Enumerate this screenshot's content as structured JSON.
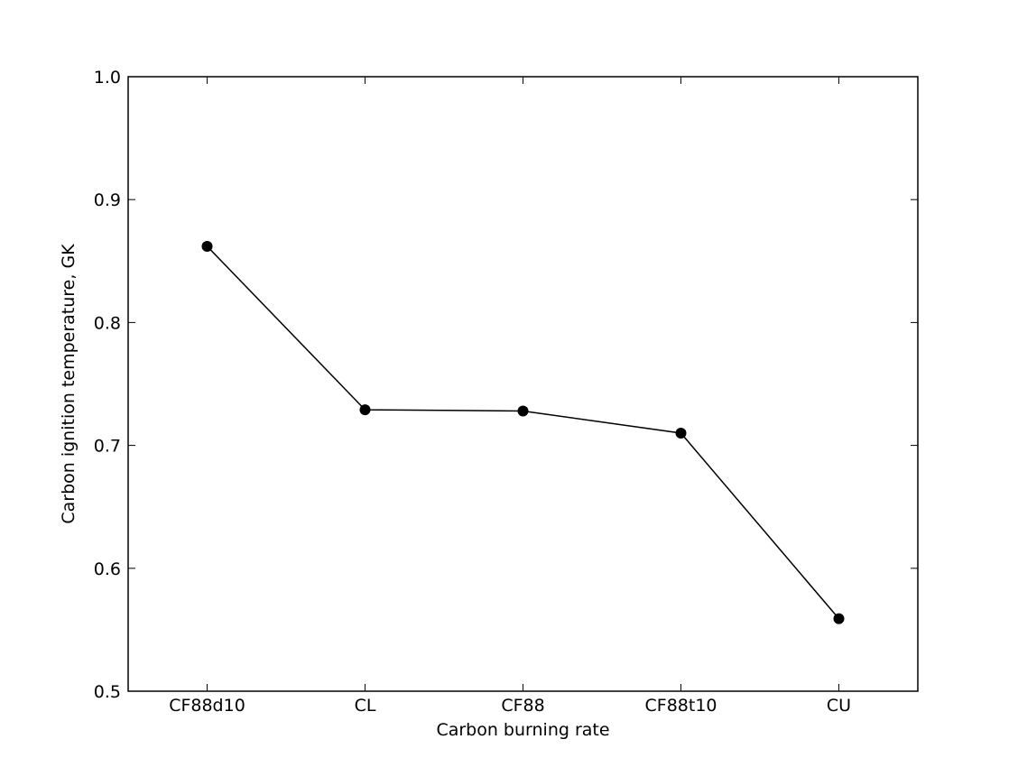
{
  "chart_data": {
    "type": "line",
    "title": "",
    "xlabel": "Carbon burning rate",
    "ylabel": "Carbon ignition temperature, GK",
    "categories": [
      "CF88d10",
      "CL",
      "CF88",
      "CF88t10",
      "CU"
    ],
    "series": [
      {
        "values": [
          0.862,
          0.729,
          0.728,
          0.71,
          0.559
        ]
      }
    ],
    "ylim": [
      0.5,
      1.0
    ],
    "yticks": [
      "0.5",
      "0.6",
      "0.7",
      "0.8",
      "0.9",
      "1.0"
    ],
    "grid": false,
    "marker": "circle",
    "line_color": "#000000",
    "marker_color": "#000000"
  }
}
